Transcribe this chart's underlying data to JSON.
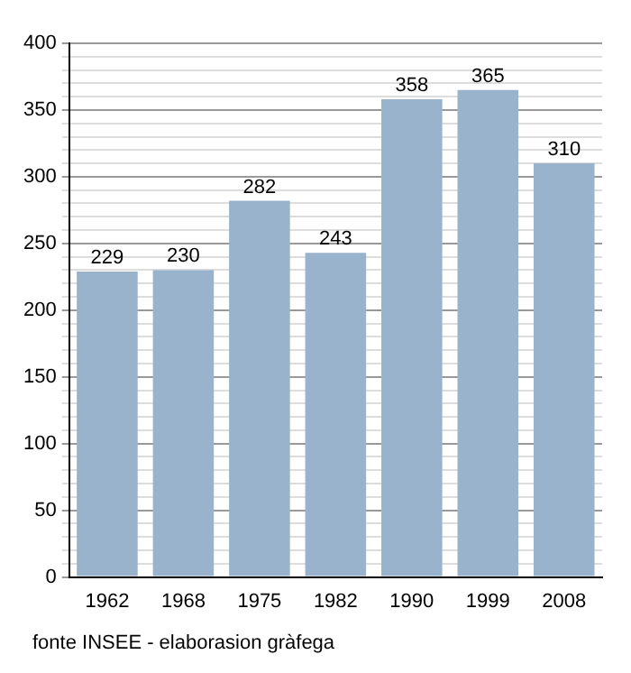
{
  "chart_data": {
    "type": "bar",
    "categories": [
      "1962",
      "1968",
      "1975",
      "1982",
      "1990",
      "1999",
      "2008"
    ],
    "values": [
      229,
      230,
      282,
      243,
      358,
      365,
      310
    ],
    "color": "#9ab3cc",
    "data_labels": true,
    "grid": "y",
    "ylim": [
      0,
      400
    ],
    "yticks": [
      0,
      {
        "value": 10,
        "label": null
      },
      {
        "value": 20,
        "label": null
      },
      {
        "value": 30,
        "label": null
      },
      {
        "value": 40,
        "label": null
      },
      50,
      {
        "value": 60,
        "label": null
      },
      {
        "value": 70,
        "label": null
      },
      {
        "value": 80,
        "label": null
      },
      {
        "value": 90,
        "label": null
      },
      100,
      {
        "value": 110,
        "label": null
      },
      {
        "value": 120,
        "label": null
      },
      {
        "value": 130,
        "label": null
      },
      {
        "value": 140,
        "label": null
      },
      150,
      {
        "value": 160,
        "label": null
      },
      {
        "value": 170,
        "label": null
      },
      {
        "value": 180,
        "label": null
      },
      {
        "value": 190,
        "label": null
      },
      200,
      {
        "value": 210,
        "label": null
      },
      {
        "value": 220,
        "label": null
      },
      {
        "value": 230,
        "label": null
      },
      {
        "value": 240,
        "label": null
      },
      250,
      {
        "value": 260,
        "label": null
      },
      {
        "value": 270,
        "label": null
      },
      {
        "value": 280,
        "label": null
      },
      {
        "value": 290,
        "label": null
      },
      300,
      {
        "value": 310,
        "label": null
      },
      {
        "value": 320,
        "label": null
      },
      {
        "value": 330,
        "label": null
      },
      {
        "value": 340,
        "label": null
      },
      350,
      {
        "value": 360,
        "label": null
      },
      {
        "value": 370,
        "label": null
      },
      {
        "value": 380,
        "label": null
      },
      {
        "value": 390,
        "label": null
      },
      400
    ],
    "annotations": [
      "fonte INSEE - elaborasion gràfega"
    ]
  }
}
